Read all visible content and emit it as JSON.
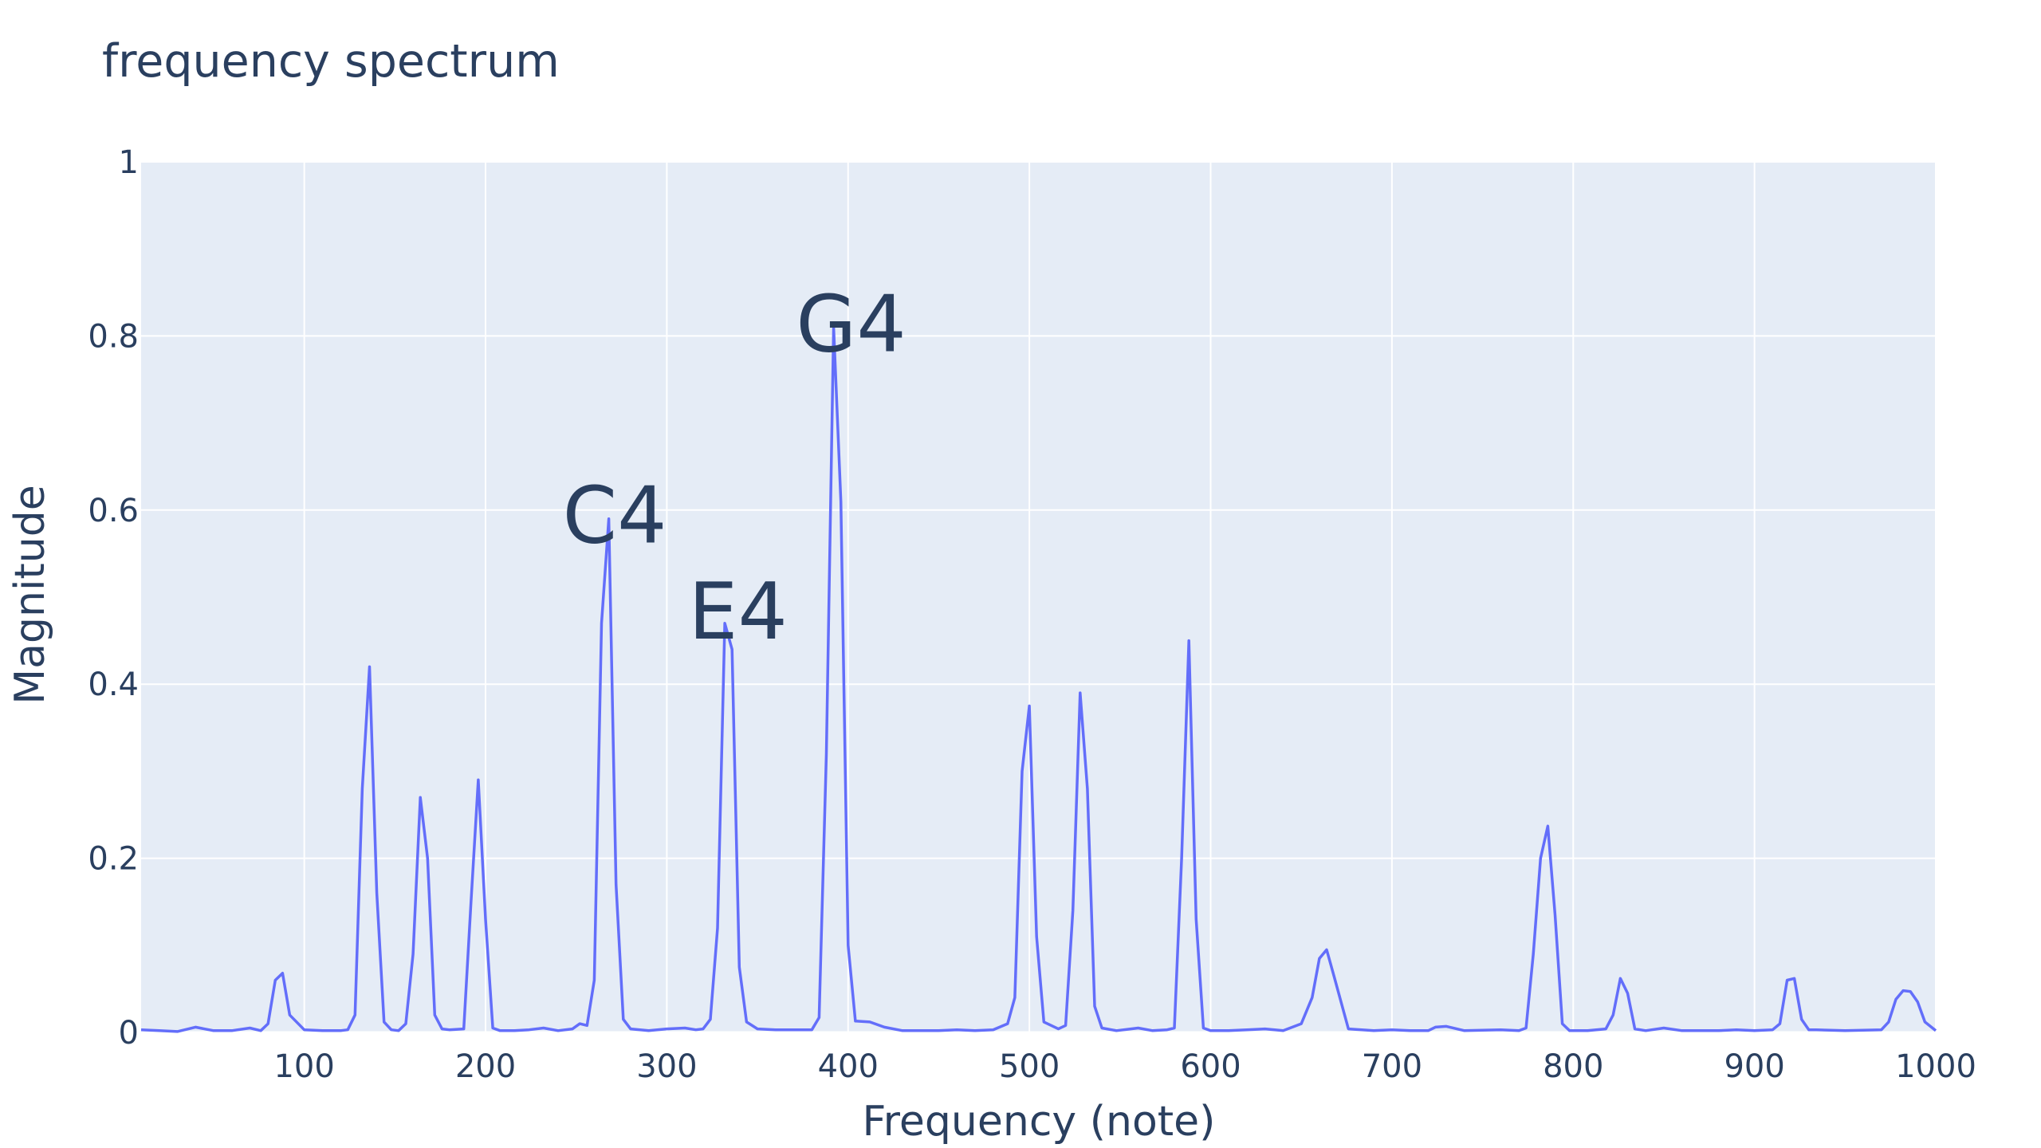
{
  "chart_data": {
    "type": "line",
    "title": "frequency spectrum",
    "xlabel": "Frequency (note)",
    "ylabel": "Magnitude",
    "xlim": [
      10,
      1000
    ],
    "ylim": [
      0,
      1
    ],
    "x_ticks": [
      100,
      200,
      300,
      400,
      500,
      600,
      700,
      800,
      900,
      1000
    ],
    "x_tick_labels": [
      "100",
      "200",
      "300",
      "400",
      "500",
      "600",
      "700",
      "800",
      "900",
      "1000"
    ],
    "y_ticks": [
      0,
      0.2,
      0.4,
      0.6,
      0.8,
      1
    ],
    "y_tick_labels": [
      "0",
      "0.2",
      "0.4",
      "0.6",
      "0.8",
      "1"
    ],
    "grid": true,
    "colors": {
      "line": "#636efa",
      "plot_bg": "#e5ecf6",
      "grid": "#ffffff",
      "text": "#2a3f5f"
    },
    "annotations": [
      {
        "text": "C4",
        "x": 261.6,
        "y": 0.59
      },
      {
        "text": "E4",
        "x": 329.6,
        "y": 0.48
      },
      {
        "text": "G4",
        "x": 392.0,
        "y": 0.81
      }
    ],
    "series": [
      {
        "x": [
          10,
          20,
          30,
          40,
          50,
          60,
          70,
          76,
          80,
          84,
          88,
          92,
          100,
          110,
          120,
          124,
          128,
          132,
          136,
          140,
          144,
          148,
          152,
          156,
          160,
          164,
          168,
          172,
          176,
          180,
          188,
          192,
          196,
          200,
          204,
          208,
          216,
          224,
          232,
          240,
          248,
          252,
          256,
          260,
          264,
          268,
          272,
          276,
          280,
          290,
          300,
          310,
          316,
          320,
          324,
          328,
          332,
          336,
          340,
          344,
          350,
          360,
          370,
          380,
          384,
          388,
          392,
          396,
          400,
          404,
          412,
          420,
          430,
          440,
          450,
          460,
          470,
          480,
          488,
          492,
          496,
          500,
          504,
          508,
          516,
          520,
          524,
          528,
          532,
          536,
          540,
          548,
          556,
          560,
          568,
          576,
          580,
          584,
          588,
          592,
          596,
          600,
          610,
          620,
          630,
          640,
          650,
          656,
          660,
          664,
          668,
          676,
          690,
          700,
          710,
          720,
          724,
          730,
          740,
          760,
          770,
          774,
          778,
          782,
          786,
          790,
          794,
          798,
          808,
          818,
          822,
          826,
          830,
          834,
          840,
          850,
          860,
          870,
          880,
          890,
          900,
          910,
          914,
          918,
          922,
          926,
          930,
          934,
          950,
          970,
          974,
          978,
          982,
          986,
          990,
          994,
          1000
        ],
        "y": [
          0.003,
          0.002,
          0.001,
          0.006,
          0.002,
          0.002,
          0.005,
          0.002,
          0.01,
          0.06,
          0.068,
          0.02,
          0.003,
          0.002,
          0.002,
          0.003,
          0.02,
          0.28,
          0.42,
          0.16,
          0.012,
          0.003,
          0.002,
          0.01,
          0.09,
          0.27,
          0.2,
          0.02,
          0.004,
          0.003,
          0.004,
          0.15,
          0.29,
          0.13,
          0.005,
          0.002,
          0.002,
          0.003,
          0.005,
          0.002,
          0.004,
          0.01,
          0.008,
          0.06,
          0.47,
          0.59,
          0.17,
          0.015,
          0.004,
          0.002,
          0.004,
          0.005,
          0.003,
          0.004,
          0.015,
          0.12,
          0.47,
          0.44,
          0.075,
          0.012,
          0.004,
          0.003,
          0.003,
          0.003,
          0.017,
          0.32,
          0.81,
          0.61,
          0.1,
          0.013,
          0.012,
          0.006,
          0.002,
          0.002,
          0.002,
          0.003,
          0.002,
          0.003,
          0.01,
          0.04,
          0.3,
          0.375,
          0.11,
          0.012,
          0.004,
          0.008,
          0.14,
          0.39,
          0.28,
          0.03,
          0.005,
          0.002,
          0.004,
          0.005,
          0.002,
          0.003,
          0.005,
          0.2,
          0.45,
          0.13,
          0.005,
          0.002,
          0.002,
          0.003,
          0.004,
          0.002,
          0.01,
          0.04,
          0.085,
          0.095,
          0.065,
          0.004,
          0.002,
          0.003,
          0.002,
          0.002,
          0.006,
          0.007,
          0.002,
          0.003,
          0.002,
          0.005,
          0.09,
          0.2,
          0.237,
          0.135,
          0.01,
          0.002,
          0.002,
          0.004,
          0.02,
          0.062,
          0.045,
          0.004,
          0.002,
          0.005,
          0.002,
          0.002,
          0.002,
          0.003,
          0.002,
          0.003,
          0.01,
          0.06,
          0.062,
          0.015,
          0.003,
          0.003,
          0.002,
          0.003,
          0.012,
          0.038,
          0.048,
          0.047,
          0.035,
          0.012,
          0.002
        ]
      }
    ]
  }
}
